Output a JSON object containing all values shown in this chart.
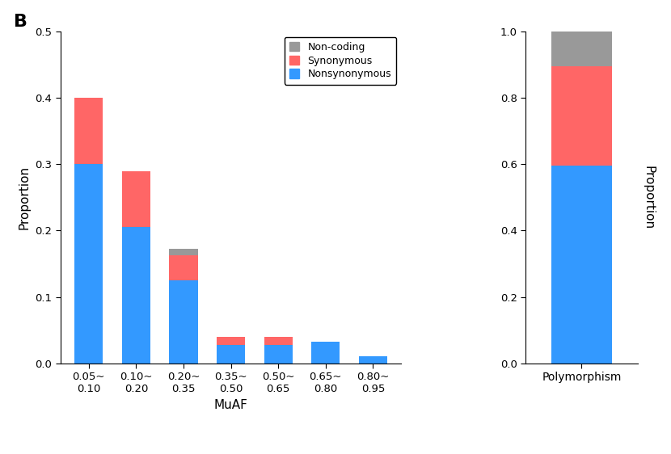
{
  "muaf_categories": [
    "0.05~\n0.10",
    "0.10~\n0.20",
    "0.20~\n0.35",
    "0.35~\n0.50",
    "0.50~\n0.65",
    "0.65~\n0.80",
    "0.80~\n0.95"
  ],
  "muaf_nonsynonymous": [
    0.3,
    0.205,
    0.125,
    0.028,
    0.028,
    0.033,
    0.01
  ],
  "muaf_synonymous": [
    0.1,
    0.085,
    0.038,
    0.012,
    0.012,
    0.0,
    0.0
  ],
  "muaf_noncoding": [
    0.0,
    0.0,
    0.01,
    0.0,
    0.0,
    0.0,
    0.0
  ],
  "poly_nonsynonymous": 0.595,
  "poly_synonymous": 0.3,
  "poly_noncoding": 0.105,
  "color_nonsynonymous": "#3399FF",
  "color_synonymous": "#FF6666",
  "color_noncoding": "#999999",
  "left_ylim": [
    0.0,
    0.5
  ],
  "right_ylim": [
    0.0,
    1.0
  ],
  "left_yticks": [
    0.0,
    0.1,
    0.2,
    0.3,
    0.4,
    0.5
  ],
  "right_yticks": [
    0.0,
    0.2,
    0.4,
    0.6,
    0.8,
    1.0
  ],
  "left_ylabel": "Proportion",
  "right_ylabel": "Proportion",
  "left_xlabel": "MuAF",
  "right_xlabel": "Polymorphism",
  "legend_labels": [
    "Non-coding",
    "Synonymous",
    "Nonsynonymous"
  ],
  "panel_label": "B",
  "background_color": "#FFFFFF"
}
